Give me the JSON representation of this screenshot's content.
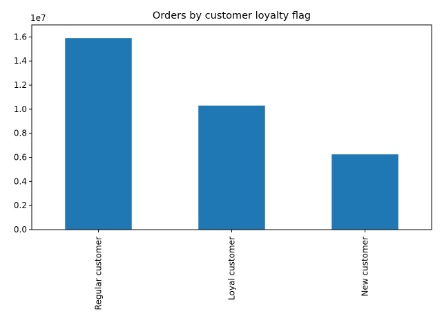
{
  "chart_data": {
    "type": "bar",
    "title": "Orders by customer loyalty flag",
    "xlabel": "",
    "ylabel": "",
    "categories": [
      "Regular customer",
      "Loyal customer",
      "New customer"
    ],
    "values": [
      15900000,
      10300000,
      6250000
    ],
    "bar_color": "#1f77b4",
    "ylim": [
      0,
      17000000
    ],
    "y_ticks": [
      0,
      2000000,
      4000000,
      6000000,
      8000000,
      10000000,
      12000000,
      14000000,
      16000000
    ],
    "y_tick_labels": [
      "0.0",
      "0.2",
      "0.4",
      "0.6",
      "0.8",
      "1.0",
      "1.2",
      "1.4",
      "1.6"
    ],
    "y_offset_text": "1e7",
    "grid": false,
    "legend": "none"
  }
}
